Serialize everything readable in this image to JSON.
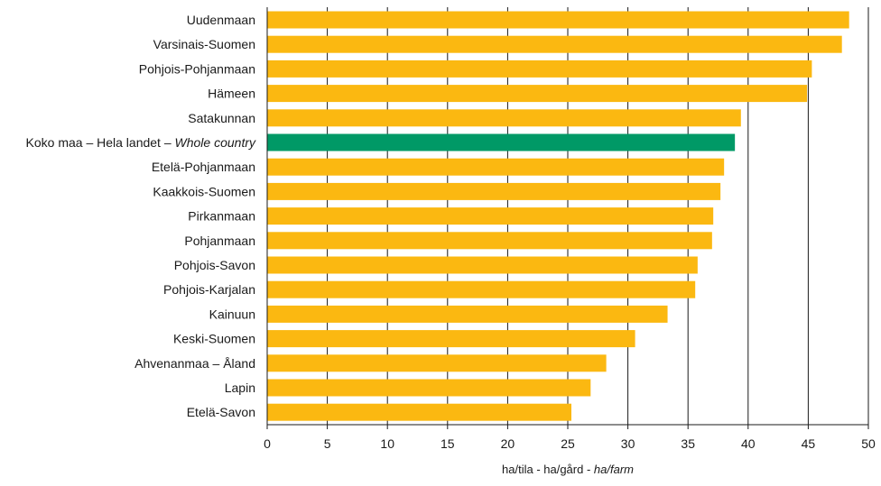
{
  "chart_data": {
    "type": "bar",
    "orientation": "horizontal",
    "categories": [
      "Uudenmaan",
      "Varsinais-Suomen",
      "Pohjois-Pohjanmaan",
      "Hämeen",
      "Satakunnan",
      "Koko maa – Hela landet – Whole country",
      "Etelä-Pohjanmaan",
      "Kaakkois-Suomen",
      "Pirkanmaan",
      "Pohjanmaan",
      "Pohjois-Savon",
      "Pohjois-Karjalan",
      "Kainuun",
      "Keski-Suomen",
      "Ahvenanmaa – Åland",
      "Lapin",
      "Etelä-Savon"
    ],
    "category_parts": [
      {
        "plain": "Uudenmaan",
        "italic": ""
      },
      {
        "plain": "Varsinais-Suomen",
        "italic": ""
      },
      {
        "plain": "Pohjois-Pohjanmaan",
        "italic": ""
      },
      {
        "plain": "Hämeen",
        "italic": ""
      },
      {
        "plain": "Satakunnan",
        "italic": ""
      },
      {
        "plain": "Koko maa – Hela landet – ",
        "italic": "Whole country"
      },
      {
        "plain": "Etelä-Pohjanmaan",
        "italic": ""
      },
      {
        "plain": "Kaakkois-Suomen",
        "italic": ""
      },
      {
        "plain": "Pirkanmaan",
        "italic": ""
      },
      {
        "plain": "Pohjanmaan",
        "italic": ""
      },
      {
        "plain": "Pohjois-Savon",
        "italic": ""
      },
      {
        "plain": "Pohjois-Karjalan",
        "italic": ""
      },
      {
        "plain": "Kainuun",
        "italic": ""
      },
      {
        "plain": "Keski-Suomen",
        "italic": ""
      },
      {
        "plain": "Ahvenanmaa – Åland",
        "italic": ""
      },
      {
        "plain": "Lapin",
        "italic": ""
      },
      {
        "plain": "Etelä-Savon",
        "italic": ""
      }
    ],
    "values": [
      48.4,
      47.8,
      45.3,
      44.9,
      39.4,
      38.9,
      38.0,
      37.7,
      37.1,
      37.0,
      35.8,
      35.6,
      33.3,
      30.6,
      28.2,
      26.9,
      25.3
    ],
    "highlight_index": 5,
    "xlim": [
      0,
      50
    ],
    "xticks": [
      0,
      5,
      10,
      15,
      20,
      25,
      30,
      35,
      40,
      45,
      50
    ],
    "xlabel_plain": "ha/tila - ha/gård - ",
    "xlabel_italic": "ha/farm",
    "grid": "vertical",
    "colors": {
      "bar": "#fbb811",
      "highlight": "#009966",
      "grid": "#1a1a1a",
      "text": "#1a1a1a"
    }
  }
}
